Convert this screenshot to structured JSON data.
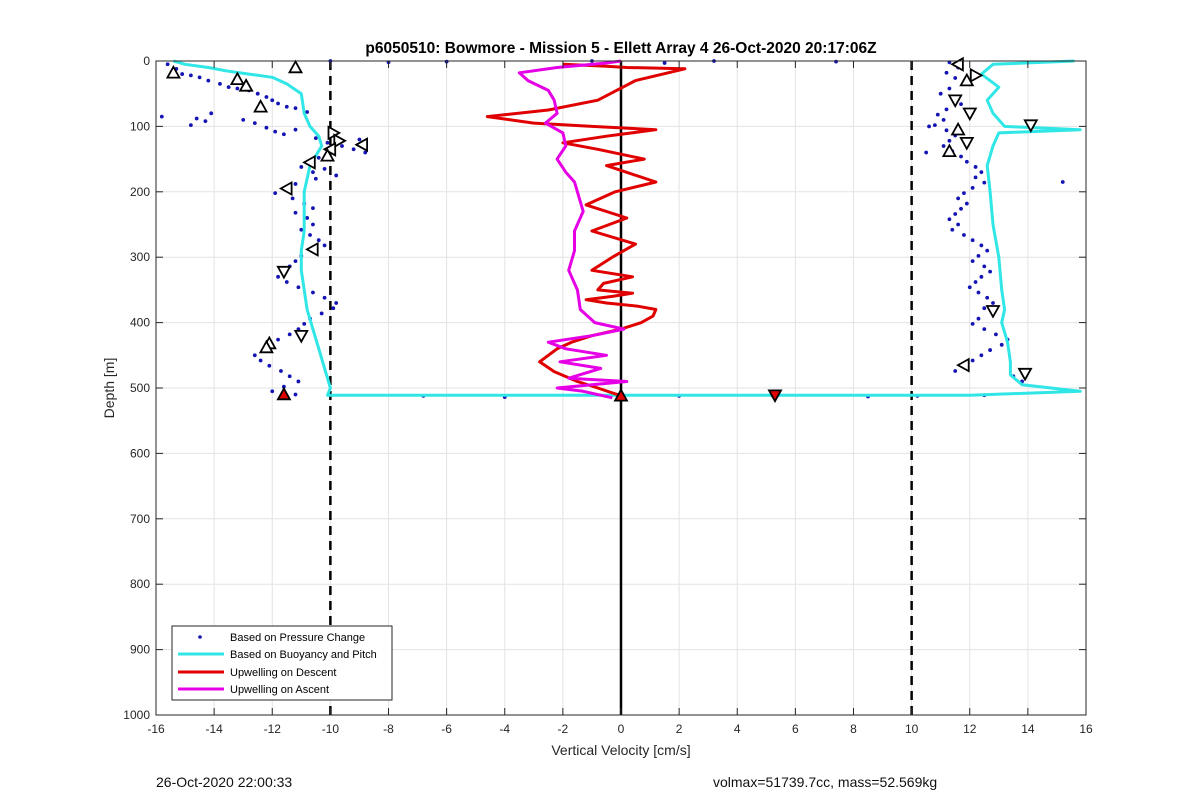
{
  "footer": {
    "timestamp": "26-Oct-2020 22:00:33",
    "vol_mass": "volmax=51739.7cc, mass=52.569kg"
  },
  "chart_data": {
    "type": "line",
    "title": "p6050510: Bowmore - Mission 5 - Ellett Array 4 26-Oct-2020 20:17:06Z",
    "xlabel": "Vertical Velocity [cm/s]",
    "ylabel": "Depth [m]",
    "xlim": [
      -16,
      16
    ],
    "ylim": [
      1000,
      0
    ],
    "y_reversed": true,
    "xticks": [
      -16,
      -14,
      -12,
      -10,
      -8,
      -6,
      -4,
      -2,
      0,
      2,
      4,
      6,
      8,
      10,
      12,
      14,
      16
    ],
    "yticks": [
      0,
      100,
      200,
      300,
      400,
      500,
      600,
      700,
      800,
      900,
      1000
    ],
    "grid": true,
    "legend_position": "bottom-left",
    "colors": {
      "pressure": "#1414b4",
      "buoyancy": "#30e6e6",
      "descent": "#e00000",
      "ascent": "#e600e6",
      "reference": "#000000",
      "grid": "#e3e3e3"
    },
    "reference_lines": [
      {
        "x": -10,
        "style": "dashed"
      },
      {
        "x": 10,
        "style": "dashed"
      },
      {
        "x": 0,
        "style": "solid"
      }
    ],
    "legend": [
      "Based on Pressure Change",
      "Based on Buoyancy and Pitch",
      "Upwelling on Descent",
      "Upwelling on Ascent"
    ],
    "series": [
      {
        "name": "Based on Buoyancy and Pitch",
        "x": [
          -15.4,
          -15,
          -14.2,
          -13.6,
          -12.8,
          -12,
          -11.5,
          -11,
          -10.9,
          -10.7,
          -10.4,
          -10.3,
          -10.5,
          -10.7,
          -10.8,
          -10.9,
          -10.9,
          -10.9,
          -11,
          -11,
          -10.9,
          -10.8,
          -10.6,
          -10.4,
          -10.2,
          -10,
          -10.1,
          -8,
          -4,
          0,
          4,
          8,
          12,
          15.8,
          13.8,
          13.4,
          13.4,
          13.3,
          13.1,
          13.2,
          13.1,
          13,
          12.8,
          12.7,
          12.6,
          12.8,
          13,
          15.8,
          13.2,
          12.8,
          12.6,
          13,
          12.4,
          12.8,
          15.6
        ],
        "y": [
          0,
          5,
          10,
          15,
          20,
          25,
          35,
          50,
          80,
          100,
          115,
          130,
          145,
          160,
          180,
          200,
          230,
          260,
          290,
          320,
          350,
          380,
          410,
          440,
          470,
          500,
          511,
          511,
          511,
          511,
          511,
          511,
          511,
          505,
          495,
          480,
          460,
          430,
          400,
          380,
          350,
          300,
          250,
          200,
          160,
          130,
          110,
          105,
          100,
          80,
          60,
          40,
          20,
          5,
          0
        ]
      },
      {
        "name": "Upwelling on Descent",
        "x": [
          -2,
          -0.5,
          0.2,
          2.2,
          0.5,
          -0.8,
          -2.5,
          -4.6,
          -3,
          -1,
          1.2,
          -0.5,
          -2,
          -0.8,
          0.8,
          -0.5,
          1.2,
          -0.2,
          -1.2,
          0.2,
          -1,
          0.5,
          -0.3,
          -1,
          0.4,
          -0.6,
          -0.8,
          0.4,
          -0.3,
          -1.2,
          -0.5,
          0.6,
          1.2,
          1.1,
          0.7,
          0,
          -1,
          -1.7,
          -2.2,
          -2.8,
          -2.3,
          -1.5,
          -0.8,
          0
        ],
        "y": [
          5,
          8,
          10,
          12,
          30,
          60,
          75,
          85,
          95,
          100,
          105,
          115,
          125,
          135,
          150,
          160,
          185,
          200,
          220,
          240,
          260,
          280,
          300,
          320,
          330,
          340,
          350,
          355,
          360,
          365,
          370,
          375,
          380,
          390,
          400,
          410,
          420,
          430,
          440,
          460,
          475,
          490,
          500,
          512
        ]
      },
      {
        "name": "Upwelling on Ascent",
        "x": [
          -0.3,
          -1.3,
          -2.2,
          -1,
          0.2,
          -1.8,
          -0.7,
          -2.1,
          -0.5,
          -1.9,
          -2.5,
          -1,
          0.1,
          -0.9,
          -1.4,
          -1.5,
          -1.8,
          -1.6,
          -1.6,
          -1.3,
          -1.5,
          -1.6,
          -1.9,
          -2.2,
          -1.9,
          -2,
          -2.6,
          -2.2,
          -2.3,
          -2.5,
          -3.2,
          -3.5,
          -2.2,
          -0.5,
          0
        ],
        "y": [
          515,
          505,
          500,
          495,
          490,
          485,
          470,
          460,
          450,
          440,
          430,
          420,
          410,
          400,
          380,
          350,
          320,
          290,
          260,
          230,
          200,
          185,
          170,
          150,
          130,
          110,
          95,
          80,
          60,
          45,
          30,
          18,
          10,
          3,
          0
        ]
      }
    ],
    "scatter": {
      "name": "Based on Pressure Change",
      "points": [
        [
          -15.6,
          5
        ],
        [
          -15.3,
          12
        ],
        [
          -15.1,
          20
        ],
        [
          -14.8,
          22
        ],
        [
          -14.5,
          25
        ],
        [
          -14.2,
          30
        ],
        [
          -13.8,
          35
        ],
        [
          -13.5,
          40
        ],
        [
          -13.2,
          42
        ],
        [
          -12.8,
          45
        ],
        [
          -12.5,
          50
        ],
        [
          -12.2,
          55
        ],
        [
          -12,
          60
        ],
        [
          -11.8,
          65
        ],
        [
          -11.5,
          70
        ],
        [
          -11.2,
          72
        ],
        [
          -10.8,
          78
        ],
        [
          -15.8,
          85
        ],
        [
          -14.6,
          88
        ],
        [
          -14.3,
          92
        ],
        [
          -14.1,
          80
        ],
        [
          -14.8,
          98
        ],
        [
          -13,
          90
        ],
        [
          -12.6,
          95
        ],
        [
          -12.2,
          102
        ],
        [
          -11.9,
          108
        ],
        [
          -11.6,
          112
        ],
        [
          -11.2,
          105
        ],
        [
          -10.5,
          118
        ],
        [
          -10.1,
          125
        ],
        [
          -9.6,
          130
        ],
        [
          -9.2,
          135
        ],
        [
          -9,
          120
        ],
        [
          -8.8,
          140
        ],
        [
          -10.4,
          148
        ],
        [
          -10.8,
          155
        ],
        [
          -11,
          162
        ],
        [
          -10.6,
          170
        ],
        [
          -10.2,
          165
        ],
        [
          -9.8,
          175
        ],
        [
          -10.5,
          180
        ],
        [
          -11.2,
          188
        ],
        [
          -11.6,
          195
        ],
        [
          -11.9,
          202
        ],
        [
          -11.3,
          210
        ],
        [
          -10.9,
          218
        ],
        [
          -10.6,
          225
        ],
        [
          -11.2,
          232
        ],
        [
          -10.8,
          240
        ],
        [
          -10.6,
          250
        ],
        [
          -11,
          258
        ],
        [
          -10.7,
          266
        ],
        [
          -10.4,
          274
        ],
        [
          -10.2,
          282
        ],
        [
          -10.6,
          290
        ],
        [
          -11,
          298
        ],
        [
          -11.2,
          306
        ],
        [
          -11.4,
          314
        ],
        [
          -11.6,
          322
        ],
        [
          -11.8,
          330
        ],
        [
          -11.5,
          338
        ],
        [
          -11.1,
          346
        ],
        [
          -10.6,
          354
        ],
        [
          -10.2,
          362
        ],
        [
          -9.8,
          370
        ],
        [
          -9.9,
          378
        ],
        [
          -10.3,
          386
        ],
        [
          -10.7,
          394
        ],
        [
          -10.9,
          402
        ],
        [
          -11.1,
          410
        ],
        [
          -11.4,
          418
        ],
        [
          -11.8,
          426
        ],
        [
          -12,
          434
        ],
        [
          -12.3,
          442
        ],
        [
          -12.6,
          450
        ],
        [
          -12.4,
          458
        ],
        [
          -12.1,
          466
        ],
        [
          -11.7,
          474
        ],
        [
          -11.4,
          482
        ],
        [
          -11.1,
          490
        ],
        [
          -11.6,
          498
        ],
        [
          -12,
          505
        ],
        [
          -11.2,
          510
        ],
        [
          -6.8,
          512
        ],
        [
          -4,
          514
        ],
        [
          2,
          512
        ],
        [
          5.2,
          511
        ],
        [
          8.5,
          513
        ],
        [
          10.2,
          512
        ],
        [
          12.5,
          511
        ],
        [
          -10,
          0
        ],
        [
          -8,
          2
        ],
        [
          -6,
          1
        ],
        [
          -1,
          0
        ],
        [
          1.5,
          3
        ],
        [
          3.2,
          0
        ],
        [
          7.4,
          1
        ],
        [
          11.3,
          2
        ],
        [
          11.6,
          10
        ],
        [
          11.2,
          18
        ],
        [
          11.5,
          26
        ],
        [
          11.8,
          34
        ],
        [
          11.3,
          42
        ],
        [
          11,
          50
        ],
        [
          11.4,
          58
        ],
        [
          11.7,
          66
        ],
        [
          11.2,
          74
        ],
        [
          10.9,
          82
        ],
        [
          11.1,
          90
        ],
        [
          10.8,
          98
        ],
        [
          11.2,
          106
        ],
        [
          11.5,
          114
        ],
        [
          11.3,
          122
        ],
        [
          11.1,
          130
        ],
        [
          11.4,
          138
        ],
        [
          11.7,
          146
        ],
        [
          11.9,
          154
        ],
        [
          12.2,
          162
        ],
        [
          12.4,
          170
        ],
        [
          12.2,
          178
        ],
        [
          12.5,
          186
        ],
        [
          12.1,
          194
        ],
        [
          11.8,
          202
        ],
        [
          11.6,
          210
        ],
        [
          11.9,
          218
        ],
        [
          11.7,
          226
        ],
        [
          11.5,
          234
        ],
        [
          11.3,
          242
        ],
        [
          11.6,
          250
        ],
        [
          11.4,
          258
        ],
        [
          11.8,
          266
        ],
        [
          12.1,
          274
        ],
        [
          12.4,
          282
        ],
        [
          12.6,
          290
        ],
        [
          12.3,
          298
        ],
        [
          12.1,
          306
        ],
        [
          12.5,
          314
        ],
        [
          12.7,
          322
        ],
        [
          12.4,
          330
        ],
        [
          12.2,
          338
        ],
        [
          12,
          346
        ],
        [
          12.3,
          354
        ],
        [
          12.6,
          362
        ],
        [
          12.8,
          370
        ],
        [
          12.5,
          378
        ],
        [
          12.8,
          386
        ],
        [
          12.3,
          394
        ],
        [
          12.1,
          402
        ],
        [
          12.5,
          410
        ],
        [
          12.9,
          418
        ],
        [
          13.3,
          426
        ],
        [
          13.1,
          434
        ],
        [
          12.7,
          442
        ],
        [
          12.4,
          450
        ],
        [
          12.1,
          458
        ],
        [
          11.8,
          466
        ],
        [
          11.5,
          474
        ],
        [
          13.5,
          482
        ],
        [
          13.8,
          490
        ],
        [
          15.2,
          185
        ],
        [
          10.6,
          100
        ],
        [
          10.5,
          140
        ]
      ]
    },
    "markers": [
      {
        "x": -15.4,
        "y": 18,
        "shape": "triangle-up"
      },
      {
        "x": -13.2,
        "y": 28,
        "shape": "triangle-up"
      },
      {
        "x": -12.9,
        "y": 38,
        "shape": "triangle-up"
      },
      {
        "x": -12.4,
        "y": 70,
        "shape": "triangle-up"
      },
      {
        "x": -11.2,
        "y": 10,
        "shape": "triangle-up"
      },
      {
        "x": -9.9,
        "y": 110,
        "shape": "triangle-right"
      },
      {
        "x": -9.7,
        "y": 122,
        "shape": "triangle-right"
      },
      {
        "x": -8.9,
        "y": 128,
        "shape": "triangle-left"
      },
      {
        "x": -10,
        "y": 135,
        "shape": "triangle-left"
      },
      {
        "x": -10.1,
        "y": 145,
        "shape": "triangle-up"
      },
      {
        "x": -10.7,
        "y": 155,
        "shape": "triangle-left"
      },
      {
        "x": -11.5,
        "y": 195,
        "shape": "triangle-left"
      },
      {
        "x": -10.6,
        "y": 288,
        "shape": "triangle-left"
      },
      {
        "x": -11.6,
        "y": 322,
        "shape": "triangle-down"
      },
      {
        "x": -11,
        "y": 420,
        "shape": "triangle-down"
      },
      {
        "x": -12.1,
        "y": 432,
        "shape": "triangle-up"
      },
      {
        "x": -12.2,
        "y": 438,
        "shape": "triangle-up"
      },
      {
        "x": -11.6,
        "y": 510,
        "shape": "triangle-up",
        "fill": "#e00000"
      },
      {
        "x": 0,
        "y": 512,
        "shape": "triangle-up",
        "fill": "#e00000"
      },
      {
        "x": 5.3,
        "y": 511,
        "shape": "triangle-down",
        "fill": "#e00000"
      },
      {
        "x": 11.6,
        "y": 5,
        "shape": "triangle-left"
      },
      {
        "x": 12.2,
        "y": 22,
        "shape": "triangle-right"
      },
      {
        "x": 11.9,
        "y": 30,
        "shape": "triangle-up"
      },
      {
        "x": 11.5,
        "y": 60,
        "shape": "triangle-down"
      },
      {
        "x": 12,
        "y": 80,
        "shape": "triangle-down"
      },
      {
        "x": 14.1,
        "y": 98,
        "shape": "triangle-down"
      },
      {
        "x": 11.6,
        "y": 105,
        "shape": "triangle-up"
      },
      {
        "x": 11.9,
        "y": 125,
        "shape": "triangle-down"
      },
      {
        "x": 11.3,
        "y": 138,
        "shape": "triangle-up"
      },
      {
        "x": 12.8,
        "y": 382,
        "shape": "triangle-down"
      },
      {
        "x": 11.8,
        "y": 465,
        "shape": "triangle-left"
      },
      {
        "x": 13.9,
        "y": 478,
        "shape": "triangle-down"
      }
    ]
  }
}
